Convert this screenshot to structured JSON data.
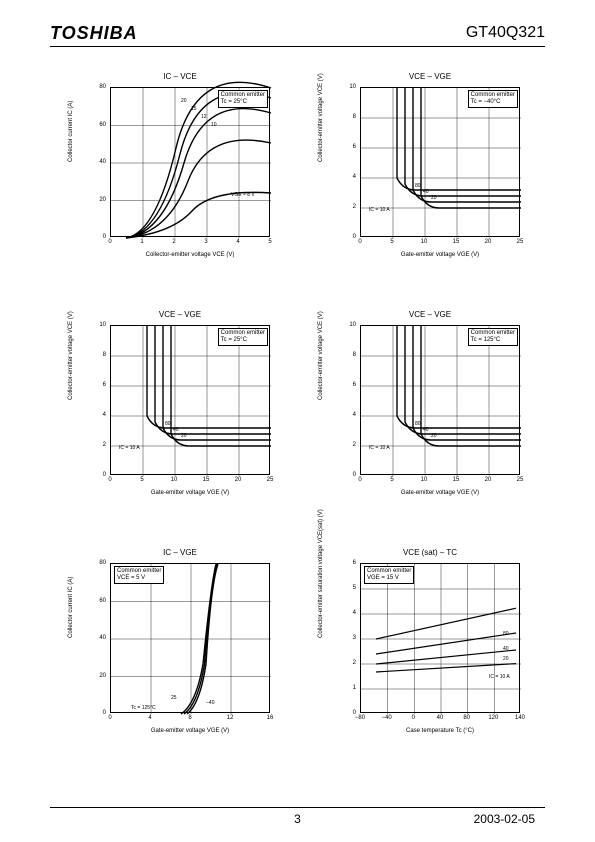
{
  "header": {
    "brand": "TOSHIBA",
    "part_number": "GT40Q321"
  },
  "footer": {
    "page": "3",
    "date": "2003-02-05"
  },
  "charts": [
    {
      "title": "IC – VCE",
      "ylabel": "Collector current   IC   (A)",
      "xlabel": "Collector-emitter voltage   VCE   (V)",
      "x_ticks": [
        "0",
        "1",
        "2",
        "3",
        "4",
        "5"
      ],
      "y_ticks": [
        "0",
        "20",
        "40",
        "60",
        "80"
      ],
      "annot": "Common emitter\nTc = 25°C",
      "annot_pos": "top-right",
      "curves": {
        "show_knee_family": true,
        "labels": [
          "20",
          "15",
          "12",
          "10",
          "VGE = 8 V"
        ]
      }
    },
    {
      "title": "VCE – VGE",
      "ylabel": "Collector-emitter voltage   VCE   (V)",
      "xlabel": "Gate-emitter voltage   VGE   (V)",
      "x_ticks": [
        "0",
        "5",
        "10",
        "15",
        "20",
        "25"
      ],
      "y_ticks": [
        "0",
        "2",
        "4",
        "6",
        "8",
        "10"
      ],
      "annot": "Common emitter\nTc = −40°C",
      "annot_pos": "top-right",
      "curves": {
        "show_L_family": true,
        "labels": [
          "80",
          "40",
          "20",
          "IC = 10 A"
        ]
      }
    },
    {
      "title": "VCE – VGE",
      "ylabel": "Collector-emitter voltage   VCE   (V)",
      "xlabel": "Gate-emitter voltage   VGE   (V)",
      "x_ticks": [
        "0",
        "5",
        "10",
        "15",
        "20",
        "25"
      ],
      "y_ticks": [
        "0",
        "2",
        "4",
        "6",
        "8",
        "10"
      ],
      "annot": "Common emitter\nTc = 25°C",
      "annot_pos": "top-right",
      "curves": {
        "show_L_family": true,
        "labels": [
          "80",
          "40",
          "20",
          "IC = 10 A"
        ]
      }
    },
    {
      "title": "VCE – VGE",
      "ylabel": "Collector-emitter voltage   VCE   (V)",
      "xlabel": "Gate-emitter voltage   VGE   (V)",
      "x_ticks": [
        "0",
        "5",
        "10",
        "15",
        "20",
        "25"
      ],
      "y_ticks": [
        "0",
        "2",
        "4",
        "6",
        "8",
        "10"
      ],
      "annot": "Common emitter\nTc = 125°C",
      "annot_pos": "top-right",
      "curves": {
        "show_L_family": true,
        "labels": [
          "80",
          "40",
          "20",
          "IC = 10 A"
        ]
      }
    },
    {
      "title": "IC – VGE",
      "ylabel": "Collector current   IC   (A)",
      "xlabel": "Gate-emitter voltage   VGE   (V)",
      "x_ticks": [
        "0",
        "4",
        "8",
        "12",
        "16"
      ],
      "y_ticks": [
        "0",
        "20",
        "40",
        "60",
        "80"
      ],
      "annot": "Common emitter\nVCE = 5 V",
      "annot_pos": "top-left",
      "curves": {
        "show_S_family": true,
        "labels": [
          "25",
          "Tc = 125°C",
          "−40"
        ]
      }
    },
    {
      "title": "VCE (sat) – TC",
      "ylabel": "Collector-emitter saturation voltage\nVCE(sat)   (V)",
      "xlabel": "Case temperature   Tc   (°C)",
      "x_ticks": [
        "−80",
        "−40",
        "0",
        "40",
        "80",
        "120",
        "140"
      ],
      "y_ticks": [
        "0",
        "1",
        "2",
        "3",
        "4",
        "5",
        "6"
      ],
      "annot": "Common emitter\nVGE = 15 V",
      "annot_pos": "top-left",
      "curves": {
        "show_linear_family": true,
        "labels": [
          "80",
          "40",
          "20",
          "IC = 10 A"
        ]
      }
    }
  ],
  "styling": {
    "line_color": "#000000",
    "grid_color": "#000000",
    "background": "#ffffff",
    "line_width_major": 1.5,
    "line_width_grid": 0.5,
    "font_size_title": 8,
    "font_size_label": 6,
    "font_size_tick": 6
  }
}
